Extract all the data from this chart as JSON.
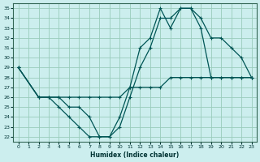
{
  "xlabel": "Humidex (Indice chaleur)",
  "background_color": "#cceeee",
  "grid_color": "#99ccbb",
  "line_color": "#005555",
  "xlim": [
    -0.5,
    23.5
  ],
  "ylim": [
    21.5,
    35.5
  ],
  "xticks": [
    0,
    1,
    2,
    3,
    4,
    5,
    6,
    7,
    8,
    9,
    10,
    11,
    12,
    13,
    14,
    15,
    16,
    17,
    18,
    19,
    20,
    21,
    22,
    23
  ],
  "yticks": [
    22,
    23,
    24,
    25,
    26,
    27,
    28,
    29,
    30,
    31,
    32,
    33,
    34,
    35
  ],
  "line1_x": [
    0,
    2,
    3,
    4,
    5,
    6,
    7,
    8,
    9,
    10,
    11,
    12,
    13,
    14,
    15,
    16,
    17,
    18,
    19,
    20,
    21,
    22,
    23
  ],
  "line1_y": [
    29,
    26,
    26,
    25,
    24,
    23,
    22,
    22,
    22,
    24,
    27,
    31,
    32,
    35,
    33,
    35,
    35,
    34,
    32,
    32,
    31,
    30,
    28
  ],
  "line2_x": [
    0,
    2,
    3,
    4,
    5,
    6,
    7,
    8,
    9,
    10,
    11,
    12,
    13,
    14,
    15,
    16,
    17,
    18,
    19,
    20,
    21,
    22,
    23
  ],
  "line2_y": [
    29,
    26,
    26,
    26,
    25,
    25,
    24,
    22,
    22,
    23,
    26,
    29,
    31,
    34,
    34,
    35,
    35,
    33,
    28,
    28,
    28,
    28,
    28
  ],
  "line3_x": [
    0,
    2,
    3,
    4,
    5,
    6,
    7,
    8,
    9,
    10,
    11,
    12,
    13,
    14,
    15,
    16,
    17,
    18,
    19,
    20,
    21,
    22,
    23
  ],
  "line3_y": [
    29,
    26,
    26,
    26,
    26,
    26,
    26,
    26,
    26,
    26,
    27,
    27,
    27,
    27,
    28,
    28,
    28,
    28,
    28,
    28,
    28,
    28,
    28
  ]
}
